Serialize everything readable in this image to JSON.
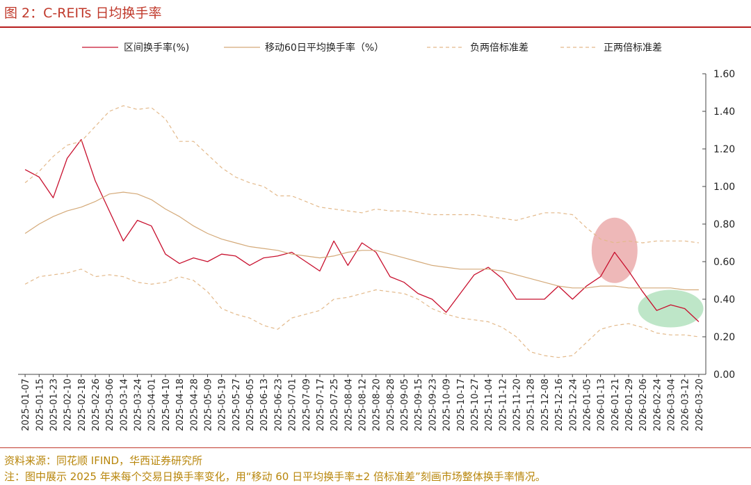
{
  "figure": {
    "title": "图 2：C-REITs 日均换手率",
    "source": "资料来源：同花顺 IFIND，华西证券研究所",
    "note": "注：图中展示 2025 年来每个交易日换手率变化，用“移动 60 日平均换手率±2 倍标准差”刻画市场整体换手率情况。"
  },
  "colors": {
    "title": "#c0392b",
    "daily": "#c8102e",
    "ma60": "#d4a978",
    "bands": "#e3b98a",
    "highlight_red": "#e8a0a0",
    "highlight_green": "#a8ddb5",
    "footer": "#b8860b"
  },
  "chart_data": {
    "type": "line",
    "ylim": [
      0,
      1.6
    ],
    "yticks": [
      "0.00",
      "0.20",
      "0.40",
      "0.60",
      "0.80",
      "1.00",
      "1.20",
      "1.40",
      "1.60"
    ],
    "y_axis_position": "right",
    "legend_position": "top",
    "grid": false,
    "categories": [
      "2025-01-07",
      "2025-01-15",
      "2025-01-23",
      "2025-02-10",
      "2025-02-18",
      "2025-02-26",
      "2025-03-06",
      "2025-03-14",
      "2025-03-24",
      "2025-04-01",
      "2025-04-10",
      "2025-04-18",
      "2025-04-28",
      "2025-05-09",
      "2025-05-19",
      "2025-05-27",
      "2025-06-05",
      "2025-06-13",
      "2025-06-23",
      "2025-07-01",
      "2025-07-09",
      "2025-07-17",
      "2025-07-25",
      "2025-08-04",
      "2025-08-12",
      "2025-08-20",
      "2025-08-28",
      "2025-09-05",
      "2025-09-15",
      "2025-09-23",
      "2025-10-09",
      "2025-10-17",
      "2025-10-27",
      "2025-11-04",
      "2025-11-12",
      "2025-11-20",
      "2025-11-28",
      "2025-12-08",
      "2025-12-16",
      "2025-12-24",
      "2026-01-05",
      "2026-01-13",
      "2026-01-21",
      "2026-01-29",
      "2026-02-06",
      "2026-02-24",
      "2026-03-04",
      "2026-03-12",
      "2026-03-20"
    ],
    "series": [
      {
        "name": "区间换手率(%)",
        "style": "solid",
        "color": "#c8102e",
        "values": [
          1.09,
          1.05,
          0.94,
          1.15,
          1.25,
          1.03,
          0.87,
          0.71,
          0.82,
          0.79,
          0.64,
          0.59,
          0.62,
          0.6,
          0.64,
          0.63,
          0.58,
          0.62,
          0.63,
          0.65,
          0.6,
          0.55,
          0.71,
          0.58,
          0.7,
          0.65,
          0.52,
          0.49,
          0.43,
          0.4,
          0.33,
          0.43,
          0.53,
          0.57,
          0.51,
          0.4,
          0.4,
          0.4,
          0.47,
          0.4,
          0.47,
          0.52,
          0.65,
          0.55,
          0.44,
          0.34,
          0.37,
          0.35,
          0.28
        ]
      },
      {
        "name": "移动60日平均换手率（%）",
        "style": "solid",
        "color": "#d4a978",
        "values": [
          0.75,
          0.8,
          0.84,
          0.87,
          0.89,
          0.92,
          0.96,
          0.97,
          0.96,
          0.93,
          0.88,
          0.84,
          0.79,
          0.75,
          0.72,
          0.7,
          0.68,
          0.67,
          0.66,
          0.64,
          0.63,
          0.62,
          0.63,
          0.65,
          0.66,
          0.66,
          0.64,
          0.62,
          0.6,
          0.58,
          0.57,
          0.56,
          0.56,
          0.56,
          0.55,
          0.53,
          0.51,
          0.49,
          0.47,
          0.46,
          0.46,
          0.47,
          0.47,
          0.46,
          0.46,
          0.46,
          0.46,
          0.45,
          0.45
        ]
      },
      {
        "name": "负两倍标准差",
        "style": "dashed",
        "color": "#e3b98a",
        "values": [
          0.48,
          0.52,
          0.53,
          0.54,
          0.56,
          0.52,
          0.53,
          0.52,
          0.49,
          0.48,
          0.49,
          0.52,
          0.5,
          0.44,
          0.35,
          0.32,
          0.3,
          0.26,
          0.24,
          0.3,
          0.32,
          0.34,
          0.4,
          0.41,
          0.43,
          0.45,
          0.44,
          0.43,
          0.4,
          0.35,
          0.32,
          0.3,
          0.29,
          0.28,
          0.25,
          0.2,
          0.12,
          0.1,
          0.09,
          0.1,
          0.17,
          0.24,
          0.26,
          0.27,
          0.25,
          0.22,
          0.21,
          0.21,
          0.2
        ]
      },
      {
        "name": "正两倍标准差",
        "style": "dashed",
        "color": "#e3b98a",
        "values": [
          1.02,
          1.08,
          1.16,
          1.22,
          1.24,
          1.32,
          1.4,
          1.43,
          1.41,
          1.42,
          1.36,
          1.24,
          1.24,
          1.17,
          1.1,
          1.05,
          1.02,
          1.0,
          0.95,
          0.95,
          0.92,
          0.89,
          0.88,
          0.87,
          0.86,
          0.88,
          0.87,
          0.87,
          0.86,
          0.85,
          0.85,
          0.85,
          0.85,
          0.84,
          0.83,
          0.82,
          0.84,
          0.86,
          0.86,
          0.85,
          0.78,
          0.72,
          0.7,
          0.71,
          0.7,
          0.71,
          0.71,
          0.71,
          0.7
        ]
      }
    ],
    "highlights": [
      {
        "color": "red",
        "x_center": "2026-01-21",
        "y_center": 0.66
      },
      {
        "color": "green",
        "x_center": "2026-03-04",
        "y_center": 0.35
      }
    ]
  }
}
